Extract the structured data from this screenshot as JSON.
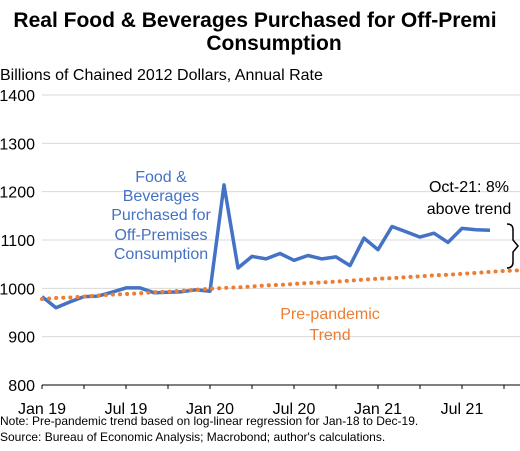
{
  "chart_data": {
    "type": "line",
    "title_lines": [
      "Real Food & Beverages Purchased for Off-Premi",
      "Consumption"
    ],
    "subtitle": "Billions of Chained 2012 Dollars, Annual Rate",
    "ylim": [
      800,
      1400
    ],
    "y_ticks": [
      "1400",
      "1300",
      "1200",
      "1100",
      "1000",
      "900",
      "800"
    ],
    "x_ticks": [
      "Jan 19",
      "Jul 19",
      "Jan 20",
      "Jul 20",
      "Jan 21",
      "Jul 21"
    ],
    "grid": "horizontal",
    "series": [
      {
        "color": "#4472C4",
        "style": "solid",
        "label_lines": [
          "Food &",
          "Beverages",
          "Purchased for",
          "Off-Premises",
          "Consumption"
        ],
        "values": [
          983,
          960,
          972,
          983,
          984,
          992,
          1001,
          1001,
          991,
          992,
          993,
          997,
          994,
          1214,
          1042,
          1066,
          1061,
          1072,
          1058,
          1068,
          1061,
          1065,
          1047,
          1104,
          1080,
          1128,
          1117,
          1106,
          1114,
          1095,
          1124,
          1121,
          1120
        ]
      },
      {
        "color": "#ED7D31",
        "style": "dotted",
        "label_lines": [
          "Pre-pandemic",
          "Trend"
        ],
        "values": [
          978,
          980,
          981,
          983,
          985,
          987,
          988,
          990,
          992,
          993,
          995,
          997,
          999,
          1001,
          1002,
          1004,
          1006,
          1007,
          1009,
          1011,
          1012,
          1014,
          1016,
          1018,
          1020,
          1021,
          1023,
          1025,
          1027,
          1028,
          1030,
          1032,
          1034,
          1036,
          1037
        ]
      }
    ],
    "callout_lines": [
      "Oct-21: 8%",
      "above trend"
    ]
  },
  "notes": [
    "Note: Pre-pandemic trend based on log-linear regression for Jan-18 to Dec-19.",
    "Source: Bureau of Economic Analysis; Macrobond; author's calculations."
  ]
}
